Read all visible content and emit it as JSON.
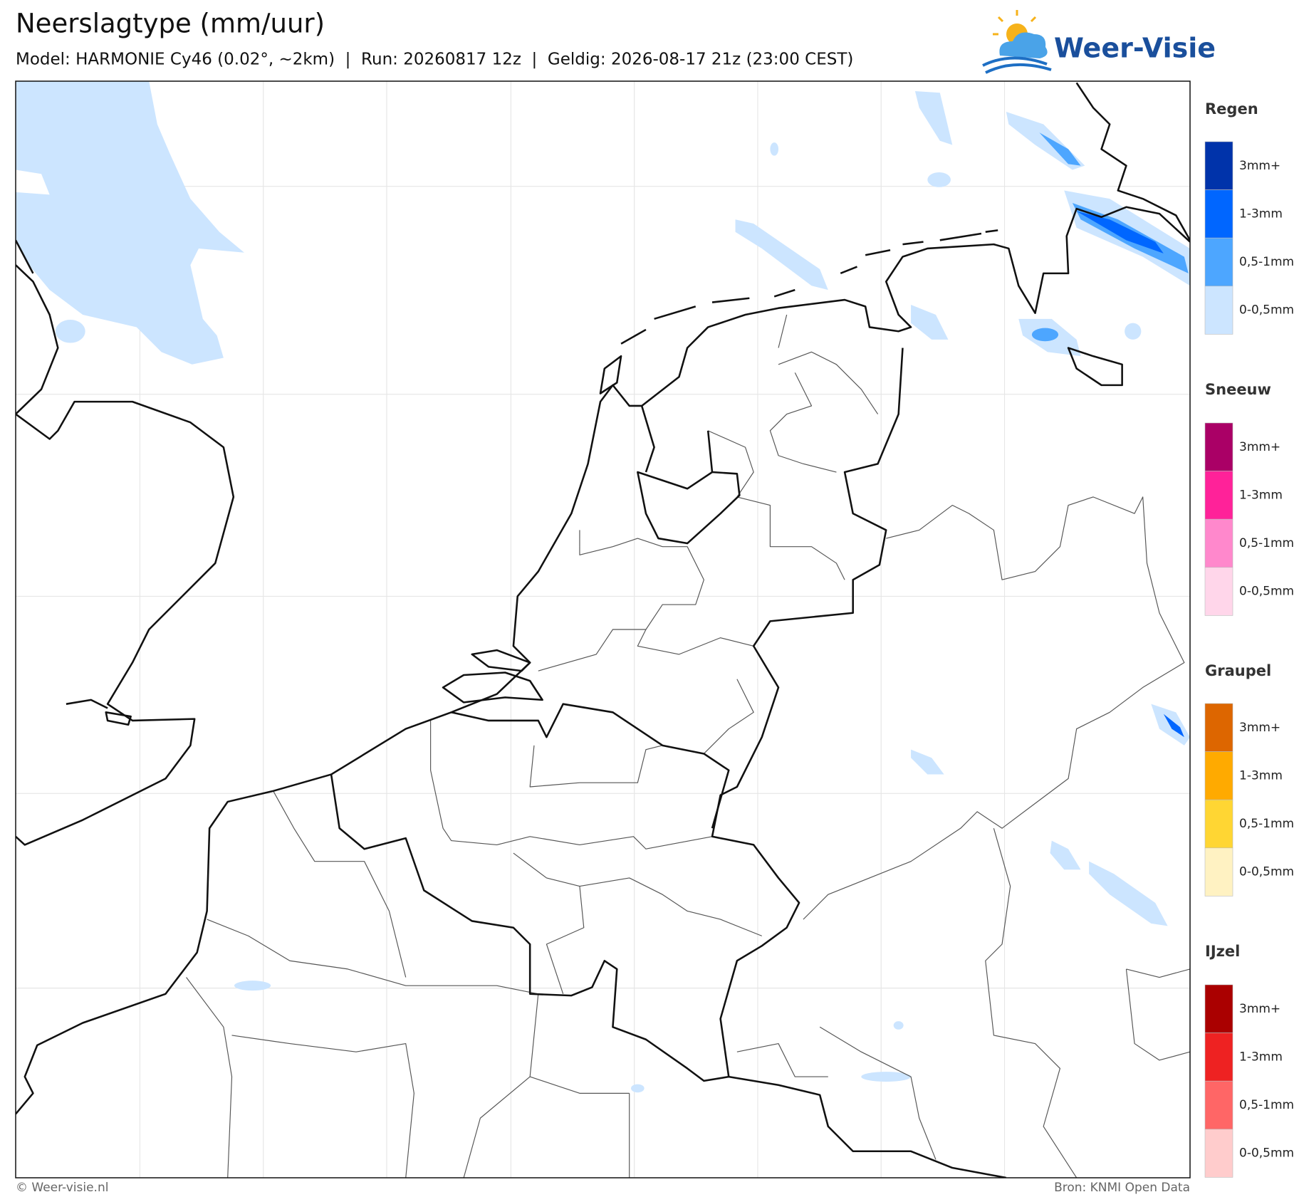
{
  "header": {
    "title": "Neerslagtype (mm/uur)",
    "subtitle": "Model: HARMONIE Cy46 (0.02°, ~2km)  |  Run: 20260817 12z  |  Geldig: 2026-08-17 21z (23:00 CEST)",
    "logo": "Weer-Visie"
  },
  "legend": [
    {
      "title": "Regen",
      "items": [
        {
          "label": "3mm+",
          "color": "#0033aa"
        },
        {
          "label": "1-3mm",
          "color": "#0066ff"
        },
        {
          "label": "0,5-1mm",
          "color": "#4da6ff"
        },
        {
          "label": "0-0,5mm",
          "color": "#cce5ff"
        }
      ]
    },
    {
      "title": "Sneeuw",
      "items": [
        {
          "label": "3mm+",
          "color": "#aa0066"
        },
        {
          "label": "1-3mm",
          "color": "#ff2299"
        },
        {
          "label": "0,5-1mm",
          "color": "#ff88cc"
        },
        {
          "label": "0-0,5mm",
          "color": "#ffd6ea"
        }
      ]
    },
    {
      "title": "Graupel",
      "items": [
        {
          "label": "3mm+",
          "color": "#dd6600"
        },
        {
          "label": "1-3mm",
          "color": "#ffaa00"
        },
        {
          "label": "0,5-1mm",
          "color": "#ffd633"
        },
        {
          "label": "0-0,5mm",
          "color": "#fff2c2"
        }
      ]
    },
    {
      "title": "IJzel",
      "items": [
        {
          "label": "3mm+",
          "color": "#aa0000"
        },
        {
          "label": "1-3mm",
          "color": "#ee2222"
        },
        {
          "label": "0,5-1mm",
          "color": "#ff6666"
        },
        {
          "label": "0-0,5mm",
          "color": "#ffcccc"
        }
      ]
    }
  ],
  "footer": {
    "credit": "© Weer-visie.nl",
    "source": "Bron: KNMI Open Data"
  }
}
